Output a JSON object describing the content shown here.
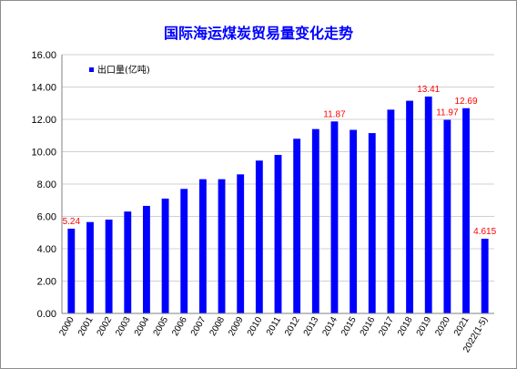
{
  "chart_data": {
    "type": "bar",
    "title": "国际海运煤炭贸易量变化走势",
    "xlabel": "",
    "ylabel": "",
    "ylim": [
      0,
      16
    ],
    "yticks": [
      "0.00",
      "2.00",
      "4.00",
      "6.00",
      "8.00",
      "10.00",
      "12.00",
      "14.00",
      "16.00"
    ],
    "grid": true,
    "legend_position": "top-left",
    "bar_color": "#0000ff",
    "label_color": "#ff0000",
    "categories": [
      "2000",
      "2001",
      "2002",
      "2003",
      "2004",
      "2005",
      "2006",
      "2007",
      "2008",
      "2009",
      "2010",
      "2011",
      "2012",
      "2013",
      "2014",
      "2015",
      "2016",
      "2017",
      "2018",
      "2019",
      "2020",
      "2021",
      "2022(1-5)"
    ],
    "series": [
      {
        "name": "出口量(亿吨)",
        "values": [
          5.24,
          5.65,
          5.8,
          6.3,
          6.65,
          7.1,
          7.7,
          8.3,
          8.3,
          8.6,
          9.45,
          9.8,
          10.8,
          11.4,
          11.87,
          11.35,
          11.15,
          12.6,
          13.15,
          13.41,
          11.97,
          12.69,
          4.615
        ]
      }
    ],
    "data_labels": [
      {
        "index": 0,
        "text": "5.24"
      },
      {
        "index": 14,
        "text": "11.87"
      },
      {
        "index": 19,
        "text": "13.41"
      },
      {
        "index": 20,
        "text": "11.97"
      },
      {
        "index": 21,
        "text": "12.69"
      },
      {
        "index": 22,
        "text": "4.615"
      }
    ]
  }
}
